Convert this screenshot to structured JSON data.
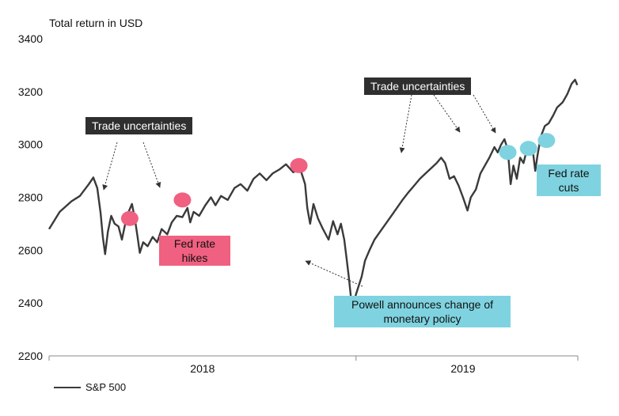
{
  "chart_data": {
    "type": "line",
    "title": "",
    "ylabel": "Total return in USD",
    "xlabel": "",
    "ylim": [
      2200,
      3400
    ],
    "yticks": [
      2200,
      2400,
      2600,
      2800,
      3000,
      3200,
      3400
    ],
    "xlim": [
      "2017-07",
      "2019-12"
    ],
    "x_tick_labels": [
      "2018",
      "2019"
    ],
    "legend": {
      "placement": "bottom-left",
      "entries": [
        "S&P 500"
      ]
    },
    "grid": false,
    "series": [
      {
        "name": "S&P 500",
        "color": "#3a3a3a",
        "points": [
          [
            "2017-07-01",
            2680
          ],
          [
            "2017-07-20",
            2745
          ],
          [
            "2017-08-10",
            2785
          ],
          [
            "2017-08-25",
            2805
          ],
          [
            "2017-09-10",
            2850
          ],
          [
            "2017-09-18",
            2875
          ],
          [
            "2017-09-25",
            2835
          ],
          [
            "2017-10-01",
            2740
          ],
          [
            "2017-10-05",
            2650
          ],
          [
            "2017-10-09",
            2585
          ],
          [
            "2017-10-14",
            2670
          ],
          [
            "2017-10-20",
            2730
          ],
          [
            "2017-10-26",
            2700
          ],
          [
            "2017-11-02",
            2690
          ],
          [
            "2017-11-08",
            2640
          ],
          [
            "2017-11-14",
            2700
          ],
          [
            "2017-11-20",
            2745
          ],
          [
            "2017-11-26",
            2775
          ],
          [
            "2017-12-01",
            2720
          ],
          [
            "2017-12-06",
            2650
          ],
          [
            "2017-12-10",
            2590
          ],
          [
            "2017-12-16",
            2630
          ],
          [
            "2017-12-24",
            2615
          ],
          [
            "2018-01-02",
            2650
          ],
          [
            "2018-01-10",
            2630
          ],
          [
            "2018-01-18",
            2680
          ],
          [
            "2018-01-28",
            2660
          ],
          [
            "2018-02-05",
            2705
          ],
          [
            "2018-02-14",
            2730
          ],
          [
            "2018-02-24",
            2725
          ],
          [
            "2018-03-05",
            2760
          ],
          [
            "2018-03-10",
            2705
          ],
          [
            "2018-03-16",
            2745
          ],
          [
            "2018-03-26",
            2730
          ],
          [
            "2018-04-06",
            2770
          ],
          [
            "2018-04-16",
            2800
          ],
          [
            "2018-04-24",
            2770
          ],
          [
            "2018-05-04",
            2805
          ],
          [
            "2018-05-16",
            2790
          ],
          [
            "2018-05-28",
            2835
          ],
          [
            "2018-06-08",
            2850
          ],
          [
            "2018-06-20",
            2825
          ],
          [
            "2018-07-01",
            2870
          ],
          [
            "2018-07-12",
            2890
          ],
          [
            "2018-07-24",
            2865
          ],
          [
            "2018-08-04",
            2890
          ],
          [
            "2018-08-16",
            2905
          ],
          [
            "2018-08-28",
            2925
          ],
          [
            "2018-09-10",
            2895
          ],
          [
            "2018-09-22",
            2910
          ],
          [
            "2018-10-01",
            2850
          ],
          [
            "2018-10-05",
            2760
          ],
          [
            "2018-10-10",
            2700
          ],
          [
            "2018-10-16",
            2775
          ],
          [
            "2018-10-24",
            2720
          ],
          [
            "2018-11-02",
            2680
          ],
          [
            "2018-11-12",
            2640
          ],
          [
            "2018-11-20",
            2710
          ],
          [
            "2018-11-28",
            2660
          ],
          [
            "2018-12-04",
            2700
          ],
          [
            "2018-12-10",
            2640
          ],
          [
            "2018-12-14",
            2570
          ],
          [
            "2018-12-18",
            2500
          ],
          [
            "2018-12-22",
            2420
          ],
          [
            "2018-12-25",
            2350
          ],
          [
            "2018-12-29",
            2420
          ],
          [
            "2019-01-04",
            2460
          ],
          [
            "2019-01-10",
            2500
          ],
          [
            "2019-01-16",
            2560
          ],
          [
            "2019-01-24",
            2600
          ],
          [
            "2019-02-02",
            2640
          ],
          [
            "2019-02-12",
            2670
          ],
          [
            "2019-02-22",
            2700
          ],
          [
            "2019-03-04",
            2730
          ],
          [
            "2019-03-14",
            2760
          ],
          [
            "2019-03-24",
            2790
          ],
          [
            "2019-04-04",
            2820
          ],
          [
            "2019-04-14",
            2845
          ],
          [
            "2019-04-24",
            2870
          ],
          [
            "2019-05-04",
            2890
          ],
          [
            "2019-05-14",
            2910
          ],
          [
            "2019-05-24",
            2930
          ],
          [
            "2019-06-01",
            2950
          ],
          [
            "2019-06-08",
            2930
          ],
          [
            "2019-06-16",
            2870
          ],
          [
            "2019-06-24",
            2880
          ],
          [
            "2019-07-02",
            2845
          ],
          [
            "2019-07-10",
            2800
          ],
          [
            "2019-07-18",
            2750
          ],
          [
            "2019-07-24",
            2800
          ],
          [
            "2019-08-02",
            2830
          ],
          [
            "2019-08-10",
            2890
          ],
          [
            "2019-08-18",
            2920
          ],
          [
            "2019-08-26",
            2950
          ],
          [
            "2019-09-04",
            2990
          ],
          [
            "2019-09-10",
            2970
          ],
          [
            "2019-09-16",
            3000
          ],
          [
            "2019-09-22",
            3020
          ],
          [
            "2019-09-28",
            2980
          ],
          [
            "2019-10-03",
            2850
          ],
          [
            "2019-10-08",
            2920
          ],
          [
            "2019-10-14",
            2870
          ],
          [
            "2019-10-20",
            2950
          ],
          [
            "2019-10-26",
            2930
          ],
          [
            "2019-11-01",
            2980
          ],
          [
            "2019-11-07",
            2990
          ],
          [
            "2019-11-12",
            2970
          ],
          [
            "2019-11-16",
            2900
          ],
          [
            "2019-11-20",
            2960
          ],
          [
            "2019-11-26",
            3030
          ],
          [
            "2019-12-03",
            3070
          ],
          [
            "2019-12-10",
            3080
          ],
          [
            "2019-12-18",
            3110
          ],
          [
            "2019-12-25",
            3140
          ],
          [
            "2020-01-04",
            3160
          ],
          [
            "2020-01-12",
            3190
          ],
          [
            "2020-01-20",
            3230
          ],
          [
            "2020-01-26",
            3245
          ],
          [
            "2020-01-30",
            3225
          ]
        ]
      }
    ],
    "markers": [
      {
        "group": "trade",
        "date": "2017-11-22",
        "value": 2720,
        "color": "#f06080"
      },
      {
        "group": "trade",
        "date": "2018-02-24",
        "value": 2790,
        "color": "#f06080"
      },
      {
        "group": "trade",
        "date": "2018-09-20",
        "value": 2920,
        "color": "#f06080"
      },
      {
        "group": "cuts",
        "date": "2019-09-28",
        "value": 2970,
        "color": "#7fd3e0"
      },
      {
        "group": "cuts",
        "date": "2019-11-04",
        "value": 2985,
        "color": "#7fd3e0"
      },
      {
        "group": "cuts",
        "date": "2019-12-06",
        "value": 3015,
        "color": "#7fd3e0"
      }
    ],
    "annotations": {
      "trade_uncertainties_left": "Trade uncertainties",
      "trade_uncertainties_right": "Trade uncertainties",
      "fed_rate_hikes": [
        "Fed rate",
        "hikes"
      ],
      "fed_rate_cuts": [
        "Fed rate",
        "cuts"
      ],
      "powell": [
        "Powell announces change of",
        "monetary policy"
      ]
    },
    "colors": {
      "line": "#3a3a3a",
      "hike_marker": "#f06080",
      "cut_marker": "#7fd3e0",
      "dark_box": "#2f2f2f"
    }
  }
}
